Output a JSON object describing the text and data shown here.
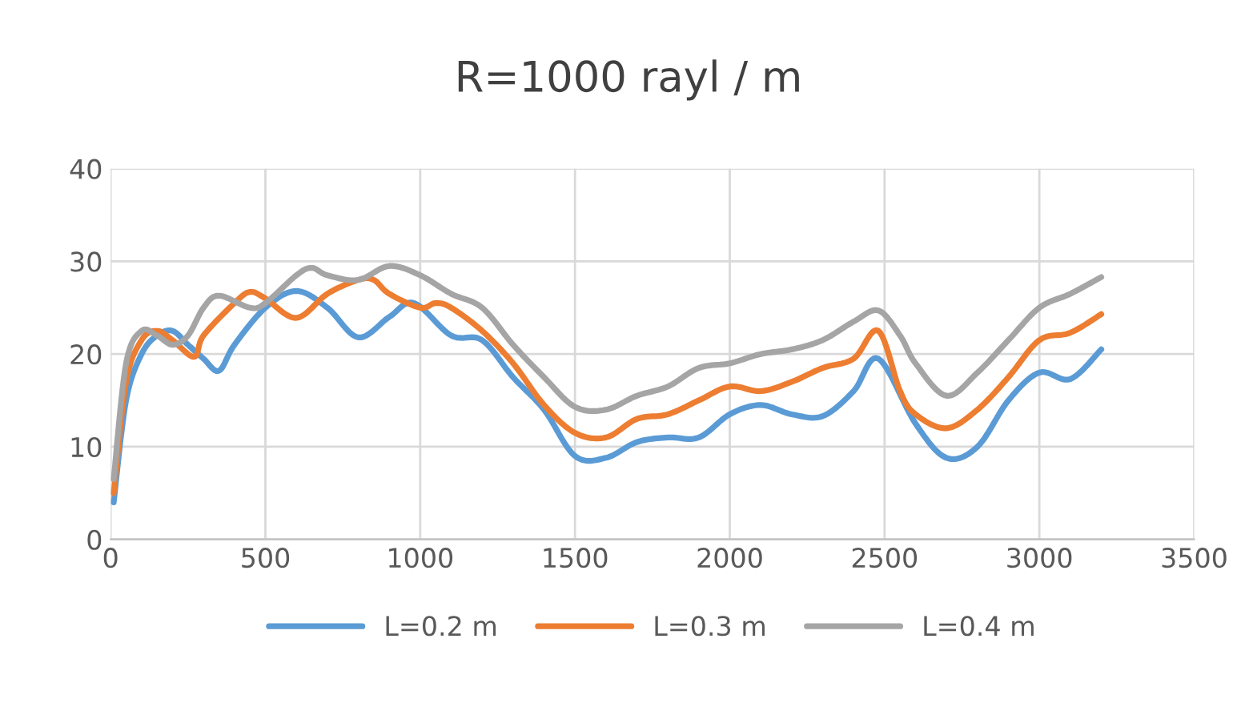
{
  "chart_data": {
    "type": "line",
    "title": "R=1000 rayl / m",
    "series": [
      {
        "name": "L=0.2 m",
        "color": "#5b9bd5",
        "x": [
          10,
          50,
          100,
          150,
          200,
          250,
          300,
          350,
          400,
          500,
          600,
          700,
          800,
          900,
          980,
          1100,
          1200,
          1300,
          1400,
          1500,
          1600,
          1700,
          1800,
          1900,
          2000,
          2100,
          2200,
          2300,
          2400,
          2480,
          2600,
          2700,
          2800,
          2900,
          3000,
          3100,
          3200
        ],
        "values": [
          4,
          15,
          20,
          22,
          22.5,
          21,
          19.5,
          18.2,
          21,
          25,
          26.8,
          25,
          21.8,
          24,
          25.5,
          22,
          21.5,
          17.5,
          14,
          9,
          8.8,
          10.5,
          11,
          11,
          13.5,
          14.5,
          13.5,
          13.3,
          16,
          19.5,
          12.5,
          8.8,
          10,
          15,
          18,
          17.3,
          20.5
        ]
      },
      {
        "name": "L=0.3 m",
        "color": "#ed7d31",
        "x": [
          10,
          50,
          100,
          150,
          200,
          270,
          300,
          400,
          450,
          500,
          600,
          700,
          800,
          850,
          900,
          1000,
          1050,
          1100,
          1200,
          1300,
          1400,
          1500,
          1600,
          1700,
          1800,
          1900,
          2000,
          2100,
          2200,
          2300,
          2400,
          2480,
          2550,
          2600,
          2700,
          2800,
          2900,
          3000,
          3100,
          3200
        ],
        "values": [
          5,
          17,
          21.5,
          22.5,
          21.5,
          19.7,
          22,
          25.5,
          26.7,
          26,
          23.9,
          26.5,
          28,
          28,
          26.5,
          25,
          25.5,
          25,
          22.5,
          19,
          14.5,
          11.5,
          11,
          13,
          13.5,
          15,
          16.5,
          16,
          17,
          18.5,
          19.5,
          22.5,
          16,
          13.5,
          12,
          14,
          17.5,
          21.5,
          22.3,
          24.3
        ]
      },
      {
        "name": "L=0.4 m",
        "color": "#a5a5a5",
        "x": [
          10,
          50,
          100,
          150,
          200,
          250,
          300,
          350,
          450,
          500,
          600,
          650,
          700,
          800,
          900,
          1000,
          1100,
          1200,
          1300,
          1400,
          1500,
          1600,
          1700,
          1800,
          1900,
          2000,
          2100,
          2200,
          2300,
          2400,
          2480,
          2550,
          2600,
          2700,
          2800,
          2900,
          3000,
          3100,
          3200
        ],
        "values": [
          6.5,
          19,
          22.5,
          22,
          21,
          22,
          25,
          26.3,
          25,
          25.5,
          28.5,
          29.3,
          28.5,
          28,
          29.5,
          28.5,
          26.5,
          25,
          21,
          17.5,
          14.3,
          14,
          15.5,
          16.5,
          18.5,
          19,
          20,
          20.5,
          21.5,
          23.5,
          24.7,
          22,
          19,
          15.5,
          18,
          21.5,
          25,
          26.5,
          28.3
        ]
      }
    ],
    "xlim": [
      0,
      3500
    ],
    "xticks": [
      0,
      500,
      1000,
      1500,
      2000,
      2500,
      3000,
      3500
    ],
    "ylim": [
      0,
      40
    ],
    "yticks": [
      0,
      10,
      20,
      30,
      40
    ],
    "grid": true,
    "legend": "bottom",
    "marker": "none",
    "line_style": "solid"
  }
}
